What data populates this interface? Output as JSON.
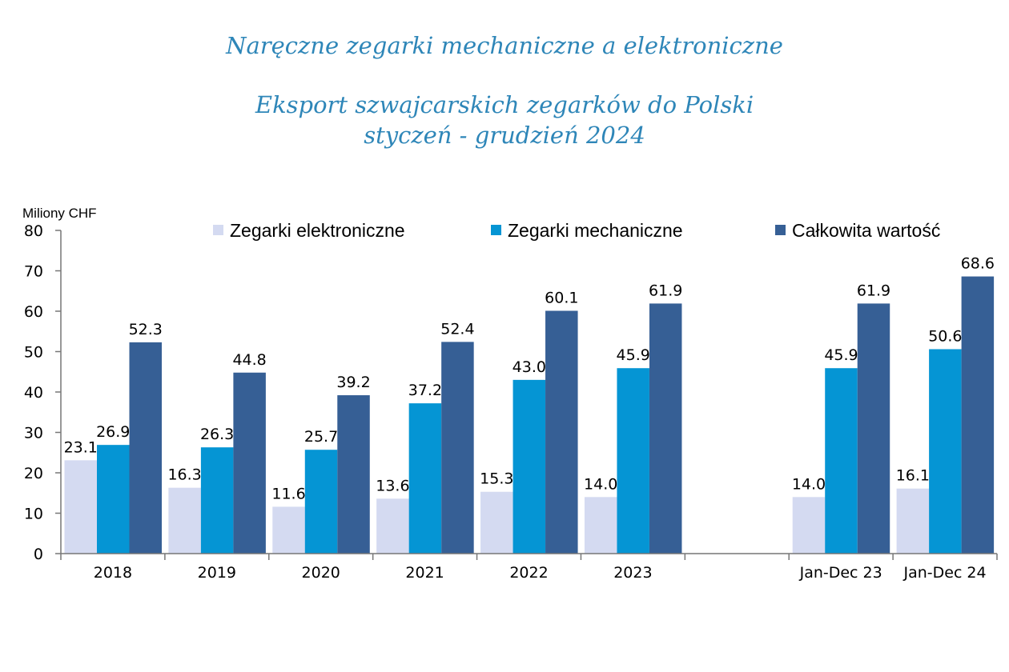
{
  "header": {
    "title_line1": "Naręczne zegarki mechaniczne a elektroniczne",
    "title_line2": "Eksport szwajcarskich zegarków do Polski",
    "title_line3": "styczeń - grudzień 2024"
  },
  "chart_data": {
    "type": "bar",
    "title": "Eksport szwajcarskich zegarków do Polski",
    "ylabel": "Miliony CHF",
    "ylim": [
      0,
      80
    ],
    "yticks": [
      0,
      10,
      20,
      30,
      40,
      50,
      60,
      70,
      80
    ],
    "legend_position": "top",
    "categories": [
      "2018",
      "2019",
      "2020",
      "2021",
      "2022",
      "2023",
      "",
      "Jan-Dec 23",
      "Jan-Dec 24"
    ],
    "series": [
      {
        "name": "Zegarki elektroniczne",
        "color": "#d4daf1",
        "values": [
          23.1,
          16.3,
          11.6,
          13.6,
          15.3,
          14.0,
          null,
          14.0,
          16.1
        ],
        "labels": [
          "23.1",
          "16.3",
          "11.6",
          "13.6",
          "15.3",
          "14.0",
          "",
          "14.0",
          "16.1"
        ]
      },
      {
        "name": "Zegarki mechaniczne",
        "color": "#0595d4",
        "values": [
          26.9,
          26.3,
          25.7,
          37.2,
          43.0,
          45.9,
          null,
          45.9,
          50.6
        ],
        "labels": [
          "26.9",
          "26.3",
          "25.7",
          "37.2",
          "43.0",
          "45.9",
          "",
          "45.9",
          "50.6"
        ]
      },
      {
        "name": "Całkowita wartość",
        "color": "#365f95",
        "values": [
          52.3,
          44.8,
          39.2,
          52.4,
          60.1,
          61.9,
          null,
          61.9,
          68.6
        ],
        "labels": [
          "52.3",
          "44.8",
          "39.2",
          "52.4",
          "60.1",
          "61.9",
          "",
          "61.9",
          "68.6"
        ]
      }
    ]
  }
}
